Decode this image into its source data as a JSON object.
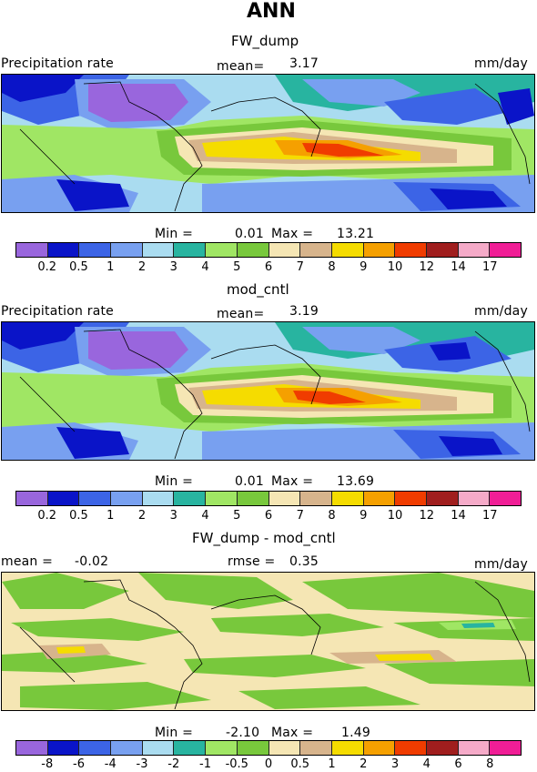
{
  "header": {
    "title": "ANN"
  },
  "panels": [
    {
      "id": "fw_dump",
      "subtitle": "FW_dump",
      "left_label": "Precipitation rate",
      "mean_label": "mean=",
      "mean_value": "3.17",
      "units": "mm/day",
      "min_label": "Min =",
      "min_value": "0.01",
      "max_label": "Max =",
      "max_value": "13.21"
    },
    {
      "id": "mod_cntl",
      "subtitle": "mod_cntl",
      "left_label": "Precipitation rate",
      "mean_label": "mean=",
      "mean_value": "3.19",
      "units": "mm/day",
      "min_label": "Min =",
      "min_value": "0.01",
      "max_label": "Max =",
      "max_value": "13.69"
    },
    {
      "id": "diff",
      "subtitle": "FW_dump - mod_cntl",
      "left_label": "mean =",
      "left_value": "-0.02",
      "rmse_label": "rmse =",
      "rmse_value": "0.35",
      "units": "mm/day",
      "min_label": "Min =",
      "min_value": "-2.10",
      "max_label": "Max =",
      "max_value": "1.49"
    }
  ],
  "colorbar": {
    "colors": [
      "#9966dd",
      "#0a14c8",
      "#3c64e6",
      "#78a0f0",
      "#aadcf0",
      "#28b4a0",
      "#a0e664",
      "#78c83c",
      "#f5e6b4",
      "#d7b48c",
      "#f5dc00",
      "#f5a000",
      "#f03c00",
      "#a01e1e",
      "#f5aac8",
      "#f01e96"
    ],
    "precip_ticks": [
      "0.2",
      "0.5",
      "1",
      "2",
      "3",
      "4",
      "5",
      "6",
      "7",
      "8",
      "9",
      "10",
      "12",
      "14",
      "17"
    ],
    "diff_ticks": [
      "-8",
      "-6",
      "-4",
      "-3",
      "-2",
      "-1",
      "-0.5",
      "0",
      "0.5",
      "1",
      "2",
      "3",
      "4",
      "6",
      "8"
    ]
  }
}
